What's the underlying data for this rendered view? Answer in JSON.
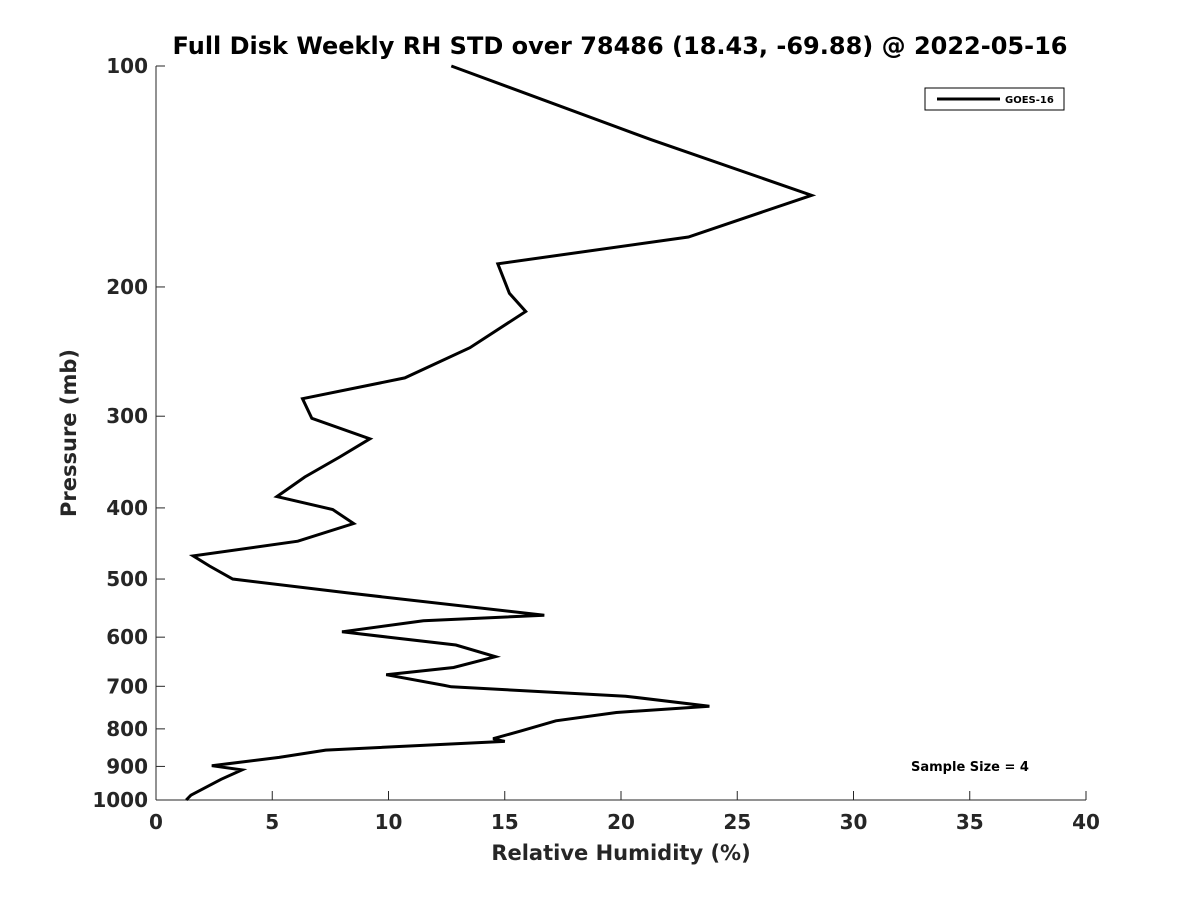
{
  "chart_data": {
    "type": "line",
    "title": "Full Disk Weekly RH STD over 78486 (18.43, -69.88) @ 2022-05-16",
    "xlabel": "Relative Humidity (%)",
    "ylabel": "Pressure (mb)",
    "xlim": [
      0,
      40
    ],
    "ylim": [
      100,
      1000
    ],
    "yscale": "log",
    "yaxis_reversed": true,
    "xticks": [
      0,
      5,
      10,
      15,
      20,
      25,
      30,
      35,
      40
    ],
    "yticks": [
      100,
      200,
      300,
      400,
      500,
      600,
      700,
      800,
      900,
      1000
    ],
    "grid": false,
    "legend": {
      "position": "top-right",
      "entries": [
        "GOES-16"
      ]
    },
    "annotation": "Sample Size = 4",
    "line_color": "#000000",
    "series": [
      {
        "name": "GOES-16",
        "x": [
          12.7,
          21.3,
          28.2,
          22.9,
          14.7,
          15.2,
          15.9,
          13.5,
          10.7,
          6.3,
          6.7,
          9.2,
          7.9,
          6.4,
          5.2,
          7.6,
          8.5,
          6.1,
          1.6,
          2.3,
          3.3,
          8.2,
          16.7,
          11.5,
          8.0,
          12.9,
          14.6,
          12.8,
          9.9,
          12.4,
          12.7,
          20.2,
          23.8,
          19.8,
          17.2,
          15.7,
          14.5,
          15.0,
          7.3,
          5.3,
          2.4,
          3.7,
          2.8,
          1.5,
          1.3
        ],
        "y": [
          100,
          126,
          150,
          171,
          186,
          204,
          216,
          242,
          266,
          284,
          302,
          322,
          341,
          363,
          386,
          402,
          420,
          444,
          465,
          480,
          500,
          522,
          560,
          570,
          590,
          615,
          638,
          660,
          675,
          698,
          701,
          722,
          745,
          760,
          780,
          805,
          825,
          832,
          855,
          875,
          898,
          910,
          937,
          985,
          1000
        ]
      }
    ]
  }
}
